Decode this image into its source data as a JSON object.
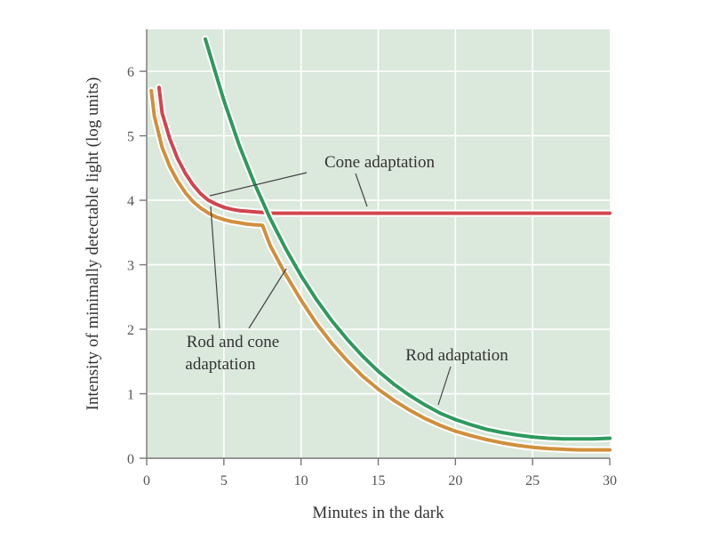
{
  "chart_data": {
    "type": "line",
    "xlabel": "Minutes in the dark",
    "ylabel": "Intensity of minimally detectable light (log units)",
    "xlim": [
      0,
      30
    ],
    "ylim": [
      0,
      6.65
    ],
    "xticks": [
      0,
      5,
      10,
      15,
      20,
      25,
      30
    ],
    "yticks": [
      0,
      1,
      2,
      3,
      4,
      5,
      6
    ],
    "grid": true,
    "background_color": "#dbe8dc",
    "grid_color": "#ffffff",
    "series": [
      {
        "name": "Cone adaptation",
        "color": "#d2454e",
        "x": [
          0.8,
          1.0,
          1.5,
          2.0,
          2.5,
          3.0,
          3.5,
          4.0,
          4.5,
          5.0,
          5.5,
          6.0,
          6.5,
          7.0,
          7.5,
          8.0,
          10,
          15,
          20,
          25,
          30
        ],
        "y": [
          5.75,
          5.35,
          4.95,
          4.65,
          4.42,
          4.24,
          4.1,
          4.0,
          3.94,
          3.89,
          3.86,
          3.84,
          3.83,
          3.82,
          3.81,
          3.8,
          3.8,
          3.8,
          3.8,
          3.8,
          3.8
        ]
      },
      {
        "name": "Rod adaptation",
        "color": "#2e9a5c",
        "x": [
          3.8,
          5,
          6,
          7,
          8,
          9,
          10,
          11,
          12,
          13,
          14,
          15,
          16,
          17,
          18,
          19,
          20,
          21,
          22,
          23,
          24,
          25,
          26,
          27,
          28,
          29,
          30
        ],
        "y": [
          6.5,
          5.55,
          4.85,
          4.25,
          3.72,
          3.25,
          2.83,
          2.46,
          2.13,
          1.84,
          1.58,
          1.35,
          1.15,
          0.98,
          0.83,
          0.7,
          0.6,
          0.52,
          0.45,
          0.4,
          0.36,
          0.33,
          0.31,
          0.3,
          0.3,
          0.3,
          0.31
        ]
      },
      {
        "name": "Rod and cone adaptation",
        "color": "#d18f3c",
        "x": [
          0.3,
          0.5,
          1.0,
          1.5,
          2.0,
          2.5,
          3.0,
          3.5,
          4.0,
          4.5,
          5.0,
          5.5,
          6.0,
          6.5,
          7.0,
          7.5,
          8,
          9,
          10,
          11,
          12,
          13,
          14,
          15,
          16,
          17,
          18,
          19,
          20,
          21,
          22,
          23,
          24,
          25,
          26,
          27,
          28,
          29,
          30
        ],
        "y": [
          5.7,
          5.3,
          4.82,
          4.52,
          4.3,
          4.12,
          3.98,
          3.88,
          3.8,
          3.74,
          3.7,
          3.67,
          3.65,
          3.63,
          3.62,
          3.61,
          3.3,
          2.85,
          2.45,
          2.09,
          1.78,
          1.51,
          1.27,
          1.07,
          0.9,
          0.75,
          0.62,
          0.51,
          0.42,
          0.35,
          0.29,
          0.24,
          0.2,
          0.17,
          0.15,
          0.14,
          0.13,
          0.13,
          0.13
        ]
      }
    ],
    "annotations": [
      {
        "text": "Cone adaptation"
      },
      {
        "text": "Rod and cone adaptation",
        "lines": [
          "Rod and cone",
          "adaptation"
        ]
      },
      {
        "text": "Rod adaptation"
      }
    ]
  }
}
